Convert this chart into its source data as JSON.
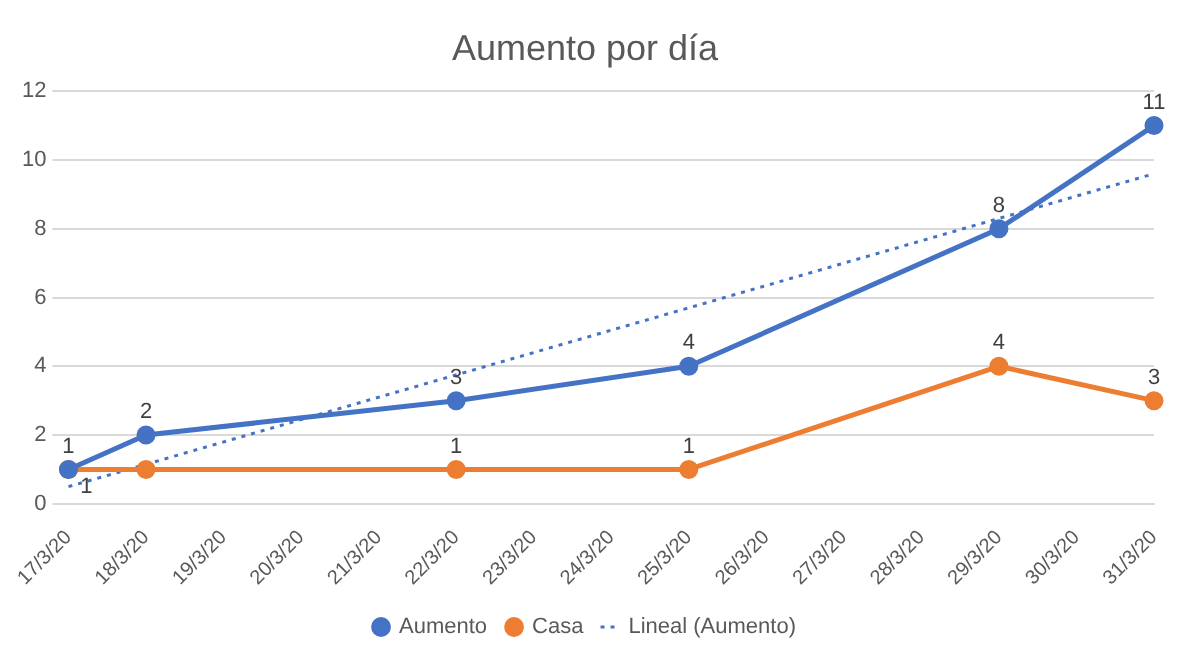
{
  "chart_data": {
    "type": "line",
    "title": "Aumento por día",
    "categories": [
      "17/3/20",
      "18/3/20",
      "19/3/20",
      "20/3/20",
      "21/3/20",
      "22/3/20",
      "23/3/20",
      "24/3/20",
      "25/3/20",
      "26/3/20",
      "27/3/20",
      "28/3/20",
      "29/3/20",
      "30/3/20",
      "31/3/20"
    ],
    "series": [
      {
        "name": "Aumento",
        "color": "#4472c4",
        "values": [
          1,
          2,
          null,
          null,
          null,
          3,
          null,
          null,
          4,
          null,
          null,
          null,
          8,
          null,
          11
        ],
        "value_labels": [
          "1",
          "2",
          null,
          null,
          null,
          "3",
          null,
          null,
          "4",
          null,
          null,
          null,
          "8",
          null,
          "11"
        ]
      },
      {
        "name": "Casa",
        "color": "#ed7d31",
        "values": [
          1,
          1,
          null,
          null,
          null,
          1,
          null,
          null,
          1,
          null,
          null,
          null,
          4,
          null,
          3
        ],
        "value_labels": [
          "1",
          null,
          null,
          null,
          null,
          "1",
          null,
          null,
          "1",
          null,
          null,
          null,
          "4",
          null,
          "3"
        ]
      },
      {
        "name": "Lineal (Aumento)",
        "color": "#4472c4",
        "marker": "none",
        "line_style": "dotted",
        "values": [
          0.5,
          null,
          null,
          null,
          null,
          null,
          null,
          null,
          null,
          null,
          null,
          null,
          null,
          null,
          9.6
        ]
      }
    ],
    "ylim": [
      0,
      12
    ],
    "yticks": [
      0,
      2,
      4,
      6,
      8,
      10,
      12
    ],
    "grid": "y",
    "legend": "bottom",
    "marker": "circle",
    "line_style": "solid"
  }
}
